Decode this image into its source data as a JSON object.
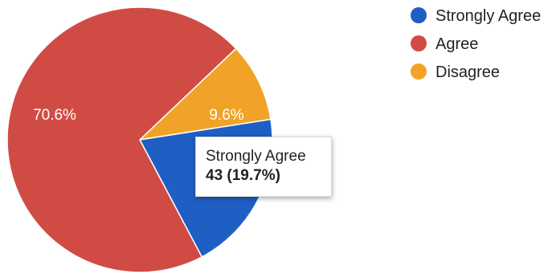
{
  "chart_data": {
    "type": "pie",
    "title": "",
    "legend_position": "top-right",
    "slices": [
      {
        "label": "Strongly Agree",
        "value": 19.7,
        "color": "#1f5fc4",
        "display": "19.7%"
      },
      {
        "label": "Agree",
        "value": 70.6,
        "color": "#d14b45",
        "display": "70.6%"
      },
      {
        "label": "Disagree",
        "value": 9.6,
        "color": "#f0a326",
        "display": "9.6%"
      }
    ]
  },
  "tooltip": {
    "title": "Strongly Agree",
    "value": "43 (19.7%)"
  }
}
